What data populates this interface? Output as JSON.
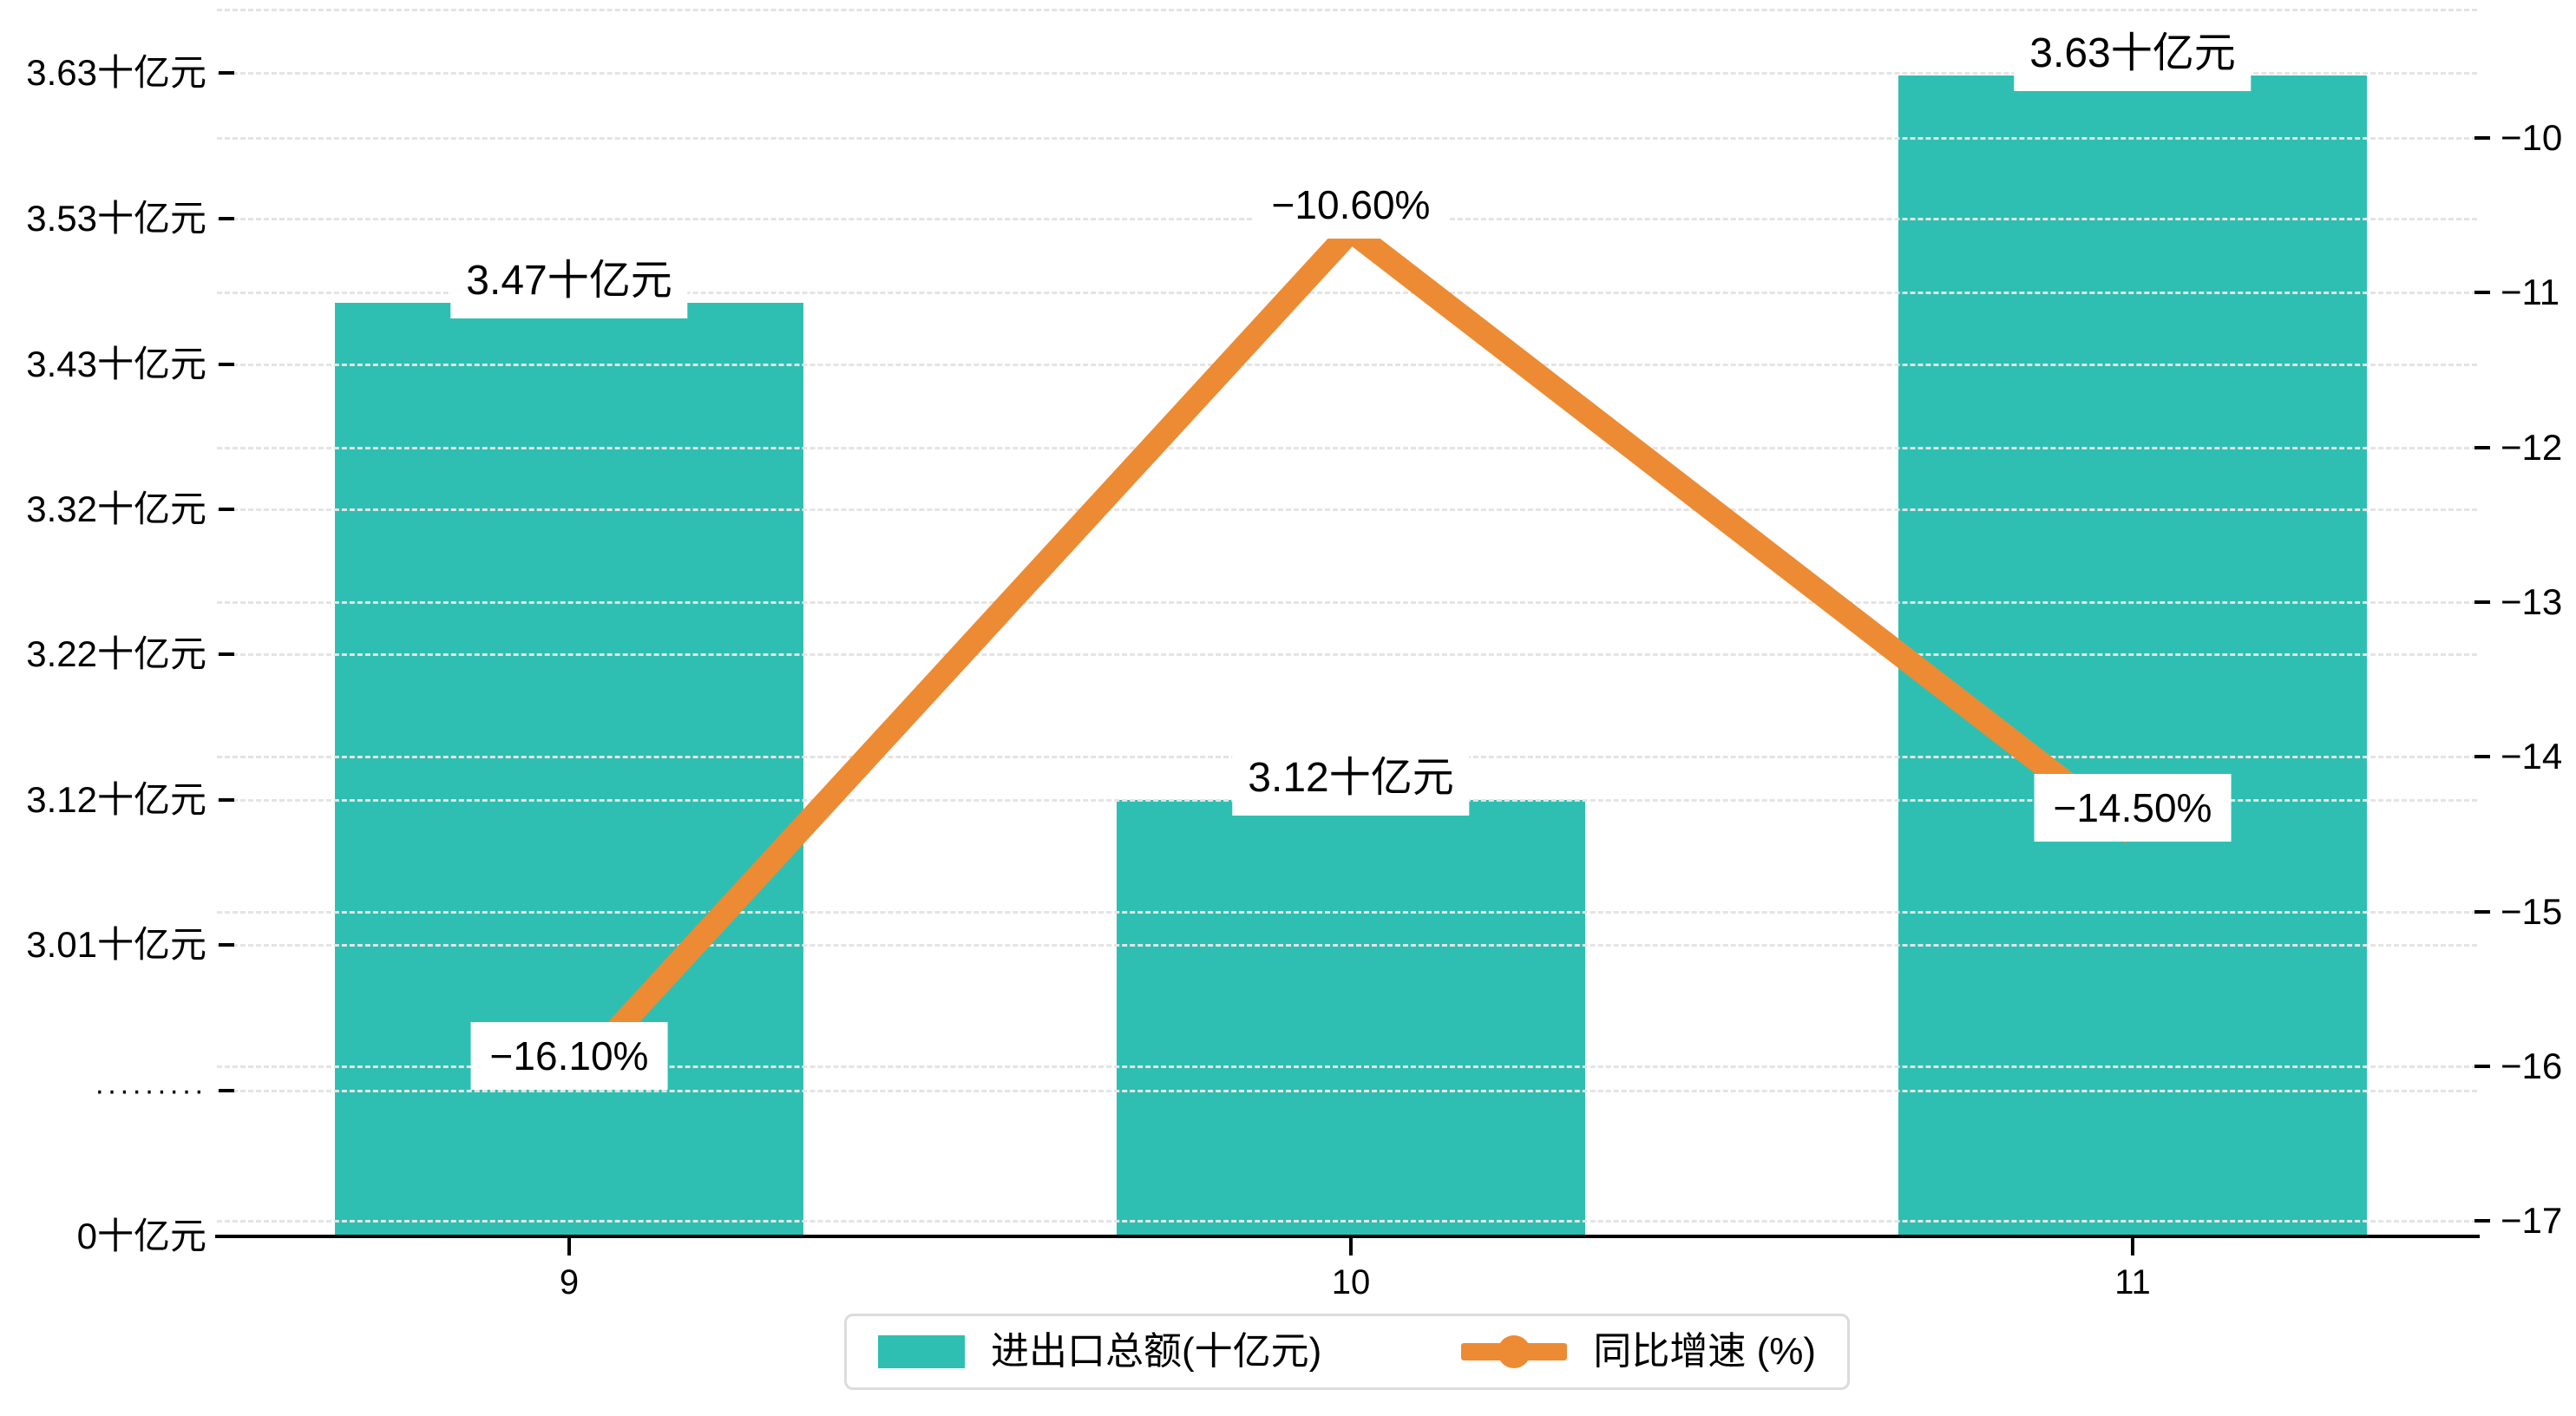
{
  "chart_data": {
    "type": "combo-bar-line",
    "categories": [
      "9",
      "10",
      "11"
    ],
    "series": [
      {
        "name": "进出口总额(十亿元)",
        "type": "bar",
        "unit": "十亿元",
        "values": [
          3.47,
          3.12,
          3.63
        ],
        "data_labels": [
          "3.47十亿元",
          "3.12十亿元",
          "3.63十亿元"
        ],
        "color": "#2FBFB2"
      },
      {
        "name": "同比增速 (%)",
        "type": "line",
        "unit": "%",
        "values": [
          -16.1,
          -10.6,
          -14.5
        ],
        "data_labels": [
          "−16.10%",
          "−10.60%",
          "−14.50%"
        ],
        "color": "#EC8B33"
      }
    ],
    "left_axis": {
      "tick_labels": [
        "3.63十亿元",
        "3.53十亿元",
        "3.43十亿元",
        "3.32十亿元",
        "3.22十亿元",
        "3.12十亿元",
        "3.01十亿元",
        "·········",
        "0十亿元"
      ],
      "axis_break": true
    },
    "right_axis": {
      "tick_labels": [
        "−10",
        "−11",
        "−12",
        "−13",
        "−14",
        "−15",
        "−16",
        "−17"
      ],
      "range": [
        -17,
        -10
      ]
    },
    "x_axis": {
      "tick_labels": [
        "9",
        "10",
        "11"
      ]
    },
    "grid": true,
    "legend_position": "bottom"
  },
  "colors": {
    "bar": "#2FBFB2",
    "line": "#EC8B33",
    "grid": "#e4e4e4",
    "axis": "#000000",
    "text": "#000000",
    "label_background": "#ffffff",
    "legend_border": "#dcdcdc",
    "background": "#ffffff"
  }
}
